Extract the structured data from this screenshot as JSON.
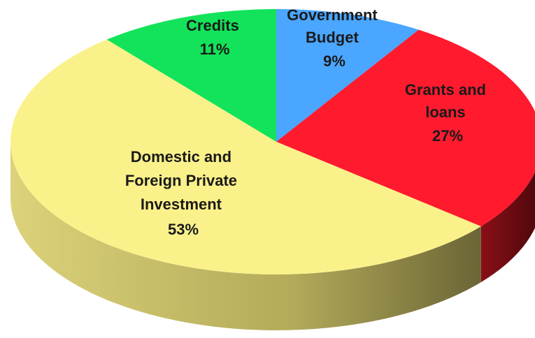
{
  "chart_data": {
    "type": "pie",
    "style": "3d",
    "title": "",
    "slices": [
      {
        "label_lines": [
          "Government",
          "Budget"
        ],
        "value": 9,
        "value_label": "9%",
        "color": "#4aa6ff",
        "side_color": "#2f6fb0"
      },
      {
        "label_lines": [
          "Grants and",
          "loans"
        ],
        "value": 27,
        "value_label": "27%",
        "color": "#ff1a2e",
        "side_color": "#7a0c12"
      },
      {
        "label_lines": [
          "Domestic and",
          "Foreign Private",
          "Investment"
        ],
        "value": 53,
        "value_label": "53%",
        "color": "#fbf18a",
        "side_color": "#b3aa5a"
      },
      {
        "label_lines": [
          "Credits"
        ],
        "value": 11,
        "value_label": "11%",
        "color": "#13e35a",
        "side_color": "#0c8a37"
      }
    ]
  }
}
